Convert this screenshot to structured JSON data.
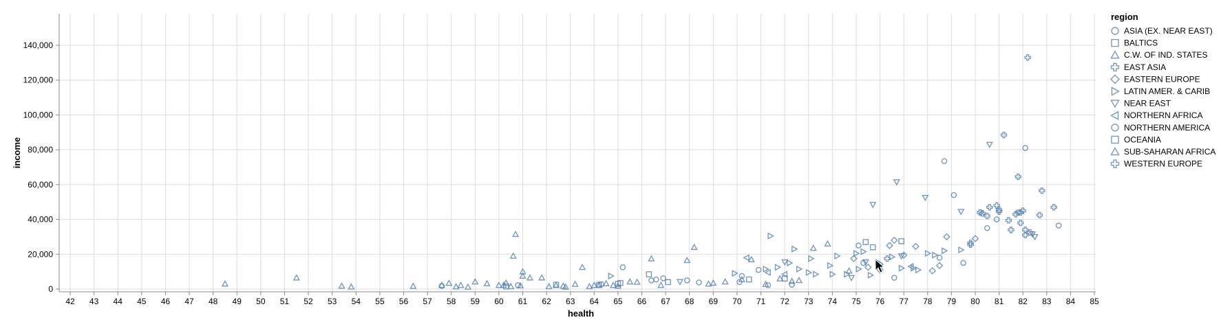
{
  "chart_data": {
    "type": "scatter",
    "xlabel": "health",
    "ylabel": "income",
    "xlim": [
      42,
      85
    ],
    "ylim": [
      0,
      140000
    ],
    "x_ticks": [
      42,
      43,
      44,
      45,
      46,
      47,
      48,
      49,
      50,
      51,
      52,
      53,
      54,
      55,
      56,
      57,
      58,
      59,
      60,
      61,
      62,
      63,
      64,
      65,
      66,
      67,
      68,
      69,
      70,
      71,
      72,
      73,
      74,
      75,
      76,
      77,
      78,
      79,
      80,
      81,
      82,
      83,
      84,
      85
    ],
    "y_ticks": [
      {
        "value": 0,
        "label": "0"
      },
      {
        "value": 20000,
        "label": "20,000"
      },
      {
        "value": 40000,
        "label": "40,000"
      },
      {
        "value": 60000,
        "label": "60,000"
      },
      {
        "value": 80000,
        "label": "80,000"
      },
      {
        "value": 100000,
        "label": "100,000"
      },
      {
        "value": 120000,
        "label": "120,000"
      },
      {
        "value": 140000,
        "label": "140,000"
      }
    ],
    "grid": true,
    "color": "#4c78a8",
    "legend": {
      "title": "region",
      "placement": "right",
      "entries": [
        {
          "label": "ASIA (EX. NEAR EAST)",
          "shape": "circle"
        },
        {
          "label": "BALTICS",
          "shape": "square"
        },
        {
          "label": "C.W. OF IND. STATES",
          "shape": "triangle-up"
        },
        {
          "label": "EAST ASIA",
          "shape": "cross"
        },
        {
          "label": "EASTERN EUROPE",
          "shape": "diamond"
        },
        {
          "label": "LATIN AMER. & CARIB",
          "shape": "triangle-right"
        },
        {
          "label": "NEAR EAST",
          "shape": "triangle-down"
        },
        {
          "label": "NORTHERN AFRICA",
          "shape": "triangle-left"
        },
        {
          "label": "NORTHERN AMERICA",
          "shape": "circle"
        },
        {
          "label": "OCEANIA",
          "shape": "square"
        },
        {
          "label": "SUB-SAHARAN AFRICA",
          "shape": "triangle-up"
        },
        {
          "label": "WESTERN EUROPE",
          "shape": "cross"
        }
      ]
    },
    "series": [
      {
        "name": "SUB-SAHARAN AFRICA",
        "shape": "triangle-up",
        "points": [
          [
            48.5,
            3000
          ],
          [
            51.5,
            6500
          ],
          [
            53.4,
            1800
          ],
          [
            53.8,
            1300
          ],
          [
            56.4,
            1700
          ],
          [
            57.6,
            2200
          ],
          [
            57.9,
            3400
          ],
          [
            58.2,
            1400
          ],
          [
            58.4,
            2200
          ],
          [
            58.7,
            1200
          ],
          [
            59.0,
            4200
          ],
          [
            59.5,
            3200
          ],
          [
            60.0,
            2200
          ],
          [
            60.3,
            3500
          ],
          [
            60.5,
            1500
          ],
          [
            60.6,
            19000
          ],
          [
            60.7,
            31500
          ],
          [
            60.9,
            2000
          ],
          [
            61.0,
            10000
          ],
          [
            61.0,
            7500
          ],
          [
            61.3,
            6500
          ],
          [
            61.8,
            6500
          ],
          [
            62.1,
            1500
          ],
          [
            62.4,
            2200
          ],
          [
            62.7,
            1800
          ],
          [
            63.2,
            2800
          ],
          [
            63.5,
            12500
          ],
          [
            63.8,
            1500
          ],
          [
            64.2,
            2500
          ],
          [
            64.5,
            3200
          ],
          [
            64.8,
            2200
          ],
          [
            65.0,
            1800
          ],
          [
            65.5,
            4200
          ],
          [
            65.8,
            4000
          ],
          [
            66.4,
            17500
          ],
          [
            66.8,
            2200
          ],
          [
            67.9,
            16500
          ],
          [
            68.2,
            24000
          ],
          [
            68.8,
            3000
          ],
          [
            69.0,
            3500
          ],
          [
            69.5,
            4200
          ]
        ]
      },
      {
        "name": "C.W. OF IND. STATES",
        "shape": "triangle-up",
        "points": [
          [
            60.2,
            2200
          ],
          [
            62.8,
            1200
          ],
          [
            64.0,
            2200
          ],
          [
            70.2,
            5500
          ],
          [
            70.6,
            17000
          ],
          [
            71.2,
            2800
          ],
          [
            71.8,
            6000
          ],
          [
            72.3,
            4500
          ],
          [
            72.6,
            5000
          ],
          [
            73.2,
            23500
          ],
          [
            73.8,
            26000
          ],
          [
            74.7,
            10500
          ]
        ]
      },
      {
        "name": "ASIA (EX. NEAR EAST)",
        "shape": "circle",
        "points": [
          [
            57.6,
            1800
          ],
          [
            60.8,
            2200
          ],
          [
            64.3,
            2800
          ],
          [
            65.2,
            12500
          ],
          [
            66.4,
            5000
          ],
          [
            66.6,
            5500
          ],
          [
            66.9,
            6200
          ],
          [
            67.9,
            5000
          ],
          [
            68.4,
            3800
          ],
          [
            70.1,
            4000
          ],
          [
            70.2,
            7500
          ],
          [
            70.9,
            11000
          ],
          [
            71.3,
            2200
          ],
          [
            72.3,
            2500
          ],
          [
            75.1,
            25000
          ],
          [
            75.3,
            15000
          ],
          [
            76.6,
            6500
          ],
          [
            78.5,
            18000
          ],
          [
            78.7,
            73500
          ],
          [
            79.1,
            54000
          ],
          [
            79.5,
            15000
          ],
          [
            80.5,
            35000
          ],
          [
            80.9,
            40000
          ],
          [
            82.1,
            81000
          ]
        ]
      },
      {
        "name": "NORTHERN AMERICA",
        "shape": "circle",
        "points": [
          [
            81.8,
            44000
          ],
          [
            83.5,
            36500
          ]
        ]
      },
      {
        "name": "BALTICS",
        "shape": "square",
        "points": [
          [
            75.4,
            27000
          ],
          [
            75.7,
            24000
          ],
          [
            76.9,
            27500
          ]
        ]
      },
      {
        "name": "OCEANIA",
        "shape": "square",
        "points": [
          [
            60.3,
            1500
          ],
          [
            62.4,
            2500
          ],
          [
            64.2,
            2300
          ],
          [
            65.0,
            3000
          ],
          [
            65.1,
            3500
          ],
          [
            66.3,
            8500
          ],
          [
            67.1,
            4000
          ],
          [
            70.5,
            5500
          ],
          [
            72.0,
            6000
          ]
        ]
      },
      {
        "name": "EAST ASIA",
        "shape": "cross",
        "points": [
          [
            76.3,
            17500
          ],
          [
            79.8,
            26500
          ],
          [
            80.2,
            44000
          ],
          [
            80.5,
            42000
          ],
          [
            80.9,
            48000
          ],
          [
            81.0,
            45500
          ],
          [
            81.4,
            39500
          ],
          [
            81.9,
            38000
          ],
          [
            82.1,
            34000
          ],
          [
            82.7,
            42500
          ],
          [
            83.3,
            47000
          ]
        ]
      },
      {
        "name": "WESTERN EUROPE",
        "shape": "cross",
        "points": [
          [
            79.8,
            25500
          ],
          [
            80.3,
            43500
          ],
          [
            80.6,
            47000
          ],
          [
            81.0,
            44500
          ],
          [
            81.2,
            88500
          ],
          [
            81.5,
            34000
          ],
          [
            81.7,
            43000
          ],
          [
            81.8,
            64500
          ],
          [
            81.9,
            44000
          ],
          [
            82.0,
            45000
          ],
          [
            82.1,
            31000
          ],
          [
            82.2,
            133000
          ],
          [
            82.3,
            32500
          ],
          [
            82.8,
            56500
          ]
        ]
      },
      {
        "name": "EASTERN EUROPE",
        "shape": "diamond",
        "points": [
          [
            74.9,
            17500
          ],
          [
            75.5,
            12500
          ],
          [
            76.0,
            11000
          ],
          [
            76.4,
            25000
          ],
          [
            76.6,
            28000
          ],
          [
            77.0,
            19500
          ],
          [
            77.5,
            24500
          ],
          [
            78.2,
            10500
          ],
          [
            78.5,
            13500
          ],
          [
            78.8,
            30000
          ],
          [
            80.0,
            29000
          ]
        ]
      },
      {
        "name": "LATIN AMER. & CARIB",
        "shape": "triangle-right",
        "points": [
          [
            64.7,
            7500
          ],
          [
            69.9,
            9000
          ],
          [
            71.2,
            11500
          ],
          [
            71.4,
            30500
          ],
          [
            71.7,
            12500
          ],
          [
            72.2,
            15000
          ],
          [
            72.4,
            23000
          ],
          [
            72.6,
            11500
          ],
          [
            73.0,
            9500
          ],
          [
            73.1,
            17500
          ],
          [
            73.3,
            8500
          ],
          [
            73.9,
            13500
          ],
          [
            74.0,
            8500
          ],
          [
            74.2,
            19000
          ],
          [
            74.6,
            8500
          ],
          [
            75.0,
            20500
          ],
          [
            75.1,
            11500
          ],
          [
            75.3,
            21500
          ],
          [
            75.6,
            8000
          ],
          [
            75.9,
            15500
          ],
          [
            76.0,
            14500
          ],
          [
            76.5,
            18500
          ],
          [
            76.9,
            12000
          ],
          [
            77.4,
            12000
          ],
          [
            77.6,
            11000
          ],
          [
            78.0,
            20500
          ],
          [
            78.3,
            19500
          ],
          [
            78.7,
            22000
          ],
          [
            79.4,
            22500
          ]
        ]
      },
      {
        "name": "NEAR EAST",
        "shape": "triangle-down",
        "points": [
          [
            67.6,
            4200
          ],
          [
            72.0,
            15500
          ],
          [
            74.8,
            6500
          ],
          [
            75.4,
            15500
          ],
          [
            75.7,
            48500
          ],
          [
            76.0,
            12500
          ],
          [
            76.7,
            61500
          ],
          [
            76.9,
            19000
          ],
          [
            77.9,
            52500
          ],
          [
            79.4,
            44500
          ],
          [
            80.6,
            83000
          ],
          [
            82.4,
            31500
          ],
          [
            82.5,
            30000
          ]
        ]
      },
      {
        "name": "NORTHERN AFRICA",
        "shape": "triangle-left",
        "points": [
          [
            70.4,
            18000
          ],
          [
            71.3,
            9500
          ],
          [
            72.0,
            8500
          ],
          [
            77.3,
            13000
          ]
        ]
      }
    ]
  }
}
